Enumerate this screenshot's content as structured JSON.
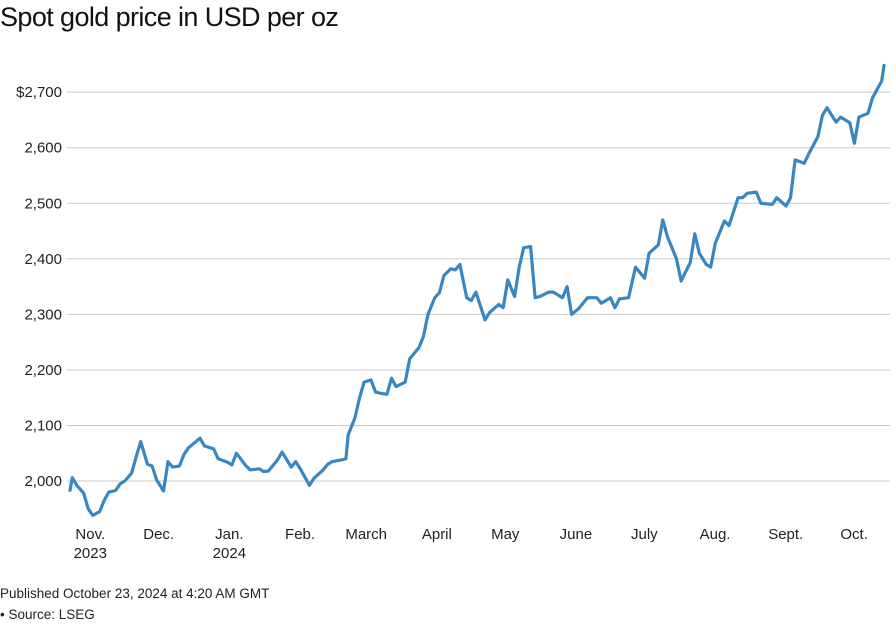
{
  "title": "Spot gold price in USD per oz",
  "published": "Published October 23, 2024 at 4:20 AM GMT",
  "source": "• Source: LSEG",
  "colors": {
    "line": "#3a86c0",
    "grid": "#c9c9c9",
    "text": "#222222"
  },
  "chart_data": {
    "type": "line",
    "title": "Spot gold price in USD per oz",
    "xlabel": "",
    "ylabel": "",
    "ylim": [
      1925,
      2760
    ],
    "yticks": [
      {
        "value": 2000,
        "label": "2,000"
      },
      {
        "value": 2100,
        "label": "2,100"
      },
      {
        "value": 2200,
        "label": "2,200"
      },
      {
        "value": 2300,
        "label": "2,300"
      },
      {
        "value": 2400,
        "label": "2,400"
      },
      {
        "value": 2500,
        "label": "2,500"
      },
      {
        "value": 2600,
        "label": "2,600"
      },
      {
        "value": 2700,
        "label": "$2,700"
      }
    ],
    "xlim": [
      "2023-10-31",
      "2024-10-22"
    ],
    "xticks": [
      {
        "date": "2023-11-01",
        "label": "Nov.",
        "label2": "2023"
      },
      {
        "date": "2023-12-01",
        "label": "Dec.",
        "label2": ""
      },
      {
        "date": "2024-01-01",
        "label": "Jan.",
        "label2": "2024"
      },
      {
        "date": "2024-02-01",
        "label": "Feb.",
        "label2": ""
      },
      {
        "date": "2024-03-01",
        "label": "March",
        "label2": ""
      },
      {
        "date": "2024-04-01",
        "label": "April",
        "label2": ""
      },
      {
        "date": "2024-05-01",
        "label": "May",
        "label2": ""
      },
      {
        "date": "2024-06-01",
        "label": "June",
        "label2": ""
      },
      {
        "date": "2024-07-01",
        "label": "July",
        "label2": ""
      },
      {
        "date": "2024-08-01",
        "label": "Aug.",
        "label2": ""
      },
      {
        "date": "2024-09-01",
        "label": "Sept.",
        "label2": ""
      },
      {
        "date": "2024-10-01",
        "label": "Oct.",
        "label2": ""
      }
    ],
    "grid": true,
    "legend": "none",
    "series": [
      {
        "x": [
          "2023-10-31",
          "2023-11-01",
          "2023-11-03",
          "2023-11-06",
          "2023-11-08",
          "2023-11-10",
          "2023-11-13",
          "2023-11-15",
          "2023-11-17",
          "2023-11-20",
          "2023-11-22",
          "2023-11-24",
          "2023-11-27",
          "2023-11-29",
          "2023-12-01",
          "2023-12-04",
          "2023-12-06",
          "2023-12-08",
          "2023-12-11",
          "2023-12-13",
          "2023-12-15",
          "2023-12-18",
          "2023-12-20",
          "2023-12-22",
          "2023-12-27",
          "2023-12-29",
          "2024-01-02",
          "2024-01-04",
          "2024-01-08",
          "2024-01-10",
          "2024-01-12",
          "2024-01-16",
          "2024-01-18",
          "2024-01-22",
          "2024-01-24",
          "2024-01-26",
          "2024-01-30",
          "2024-02-01",
          "2024-02-05",
          "2024-02-07",
          "2024-02-09",
          "2024-02-13",
          "2024-02-15",
          "2024-02-19",
          "2024-02-21",
          "2024-02-23",
          "2024-02-27",
          "2024-02-29",
          "2024-03-01",
          "2024-03-04",
          "2024-03-06",
          "2024-03-08",
          "2024-03-11",
          "2024-03-13",
          "2024-03-15",
          "2024-03-18",
          "2024-03-20",
          "2024-03-22",
          "2024-03-26",
          "2024-03-28",
          "2024-04-01",
          "2024-04-03",
          "2024-04-05",
          "2024-04-08",
          "2024-04-10",
          "2024-04-12",
          "2024-04-15",
          "2024-04-17",
          "2024-04-19",
          "2024-04-22",
          "2024-04-24",
          "2024-04-26",
          "2024-04-30",
          "2024-05-02",
          "2024-05-06",
          "2024-05-08",
          "2024-05-10",
          "2024-05-13",
          "2024-05-15",
          "2024-05-17",
          "2024-05-20",
          "2024-05-22",
          "2024-05-24",
          "2024-05-28",
          "2024-05-30",
          "2024-06-03",
          "2024-06-05",
          "2024-06-07",
          "2024-06-10",
          "2024-06-12",
          "2024-06-14",
          "2024-06-18",
          "2024-06-20",
          "2024-06-24",
          "2024-06-26",
          "2024-06-28",
          "2024-07-02",
          "2024-07-05",
          "2024-07-09",
          "2024-07-11",
          "2024-07-15",
          "2024-07-17",
          "2024-07-19",
          "2024-07-23",
          "2024-07-25",
          "2024-07-29",
          "2024-07-31",
          "2024-08-02",
          "2024-08-05",
          "2024-08-07",
          "2024-08-09",
          "2024-08-13",
          "2024-08-15",
          "2024-08-19",
          "2024-08-21",
          "2024-08-23",
          "2024-08-27",
          "2024-08-29",
          "2024-09-03",
          "2024-09-05",
          "2024-09-09",
          "2024-09-11",
          "2024-09-13",
          "2024-09-17",
          "2024-09-19",
          "2024-09-23",
          "2024-09-25",
          "2024-09-27",
          "2024-10-01",
          "2024-10-03",
          "2024-10-07",
          "2024-10-09",
          "2024-10-11",
          "2024-10-15",
          "2024-10-17",
          "2024-10-21",
          "2024-10-22"
        ],
        "y": [
          1983,
          2006,
          1992,
          1978,
          1950,
          1938,
          1945,
          1965,
          1980,
          1983,
          1995,
          2000,
          2014,
          2043,
          2071,
          2030,
          2027,
          2002,
          1982,
          2035,
          2025,
          2027,
          2048,
          2060,
          2077,
          2063,
          2058,
          2040,
          2034,
          2029,
          2050,
          2028,
          2020,
          2022,
          2017,
          2018,
          2038,
          2052,
          2025,
          2035,
          2022,
          1992,
          2005,
          2020,
          2030,
          2035,
          2038,
          2040,
          2083,
          2114,
          2150,
          2178,
          2182,
          2160,
          2158,
          2156,
          2185,
          2170,
          2178,
          2220,
          2240,
          2260,
          2300,
          2330,
          2339,
          2370,
          2382,
          2380,
          2390,
          2330,
          2325,
          2340,
          2290,
          2303,
          2318,
          2312,
          2362,
          2332,
          2385,
          2420,
          2422,
          2330,
          2332,
          2340,
          2340,
          2330,
          2350,
          2300,
          2310,
          2320,
          2330,
          2330,
          2320,
          2330,
          2312,
          2328,
          2330,
          2385,
          2365,
          2410,
          2425,
          2470,
          2440,
          2400,
          2360,
          2393,
          2445,
          2410,
          2390,
          2385,
          2428,
          2468,
          2460,
          2510,
          2510,
          2518,
          2520,
          2500,
          2498,
          2510,
          2495,
          2510,
          2578,
          2572,
          2589,
          2620,
          2658,
          2672,
          2646,
          2655,
          2645,
          2608,
          2655,
          2662,
          2690,
          2720,
          2748
        ]
      }
    ]
  }
}
